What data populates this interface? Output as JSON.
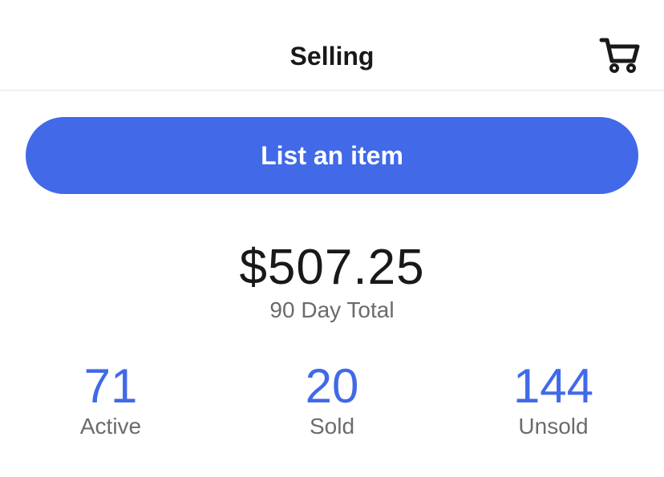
{
  "header": {
    "title": "Selling",
    "cart_icon": "shopping-cart-icon"
  },
  "actions": {
    "list_item_label": "List an item"
  },
  "summary": {
    "total_amount": "$507.25",
    "total_label": "90 Day Total"
  },
  "stats": [
    {
      "value": "71",
      "label": "Active"
    },
    {
      "value": "20",
      "label": "Sold"
    },
    {
      "value": "144",
      "label": "Unsold"
    }
  ],
  "colors": {
    "accent": "#4169e8",
    "text_primary": "#191919",
    "text_secondary": "#6b6b6b",
    "divider": "#e5e5e5"
  }
}
